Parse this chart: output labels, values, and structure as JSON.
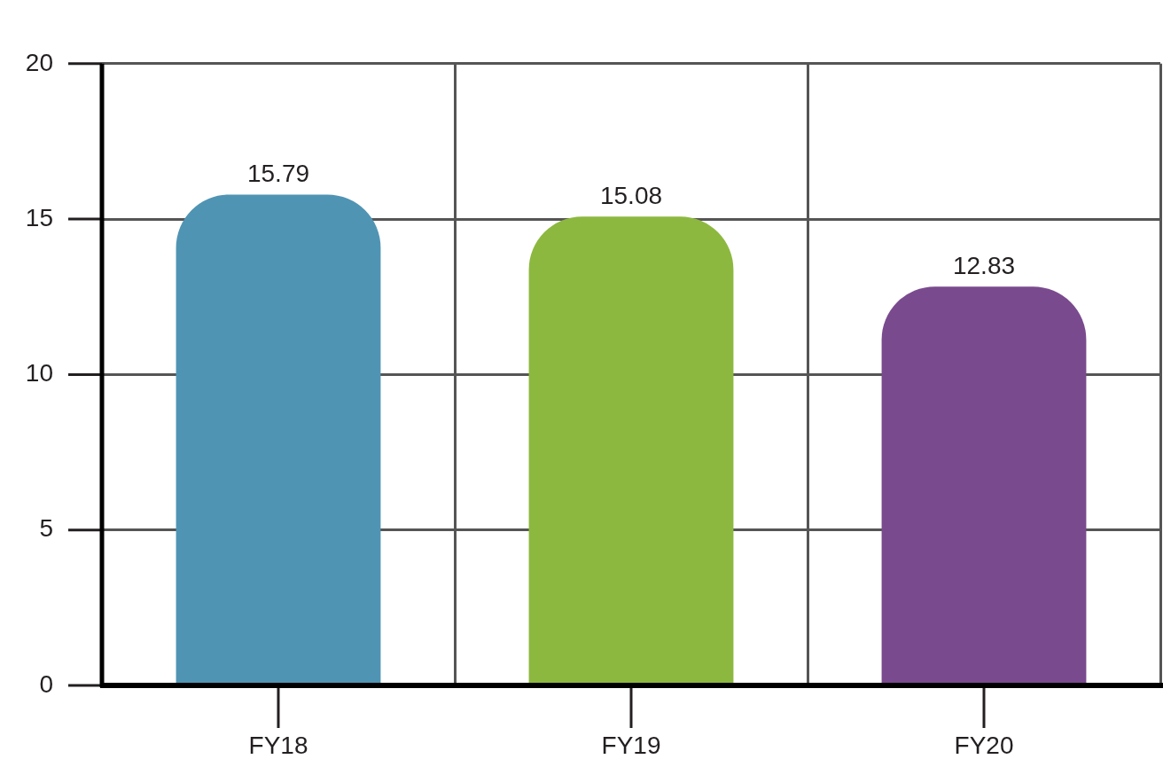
{
  "chart_data": {
    "type": "bar",
    "categories": [
      "FY18",
      "FY19",
      "FY20"
    ],
    "values": [
      15.79,
      15.08,
      12.83
    ],
    "colors": [
      "#5094b4",
      "#8db840",
      "#7a4a8e"
    ],
    "ylim": [
      0,
      20
    ],
    "yticks": [
      0,
      5,
      10,
      15,
      20
    ],
    "grid": true,
    "data_labels": true
  }
}
